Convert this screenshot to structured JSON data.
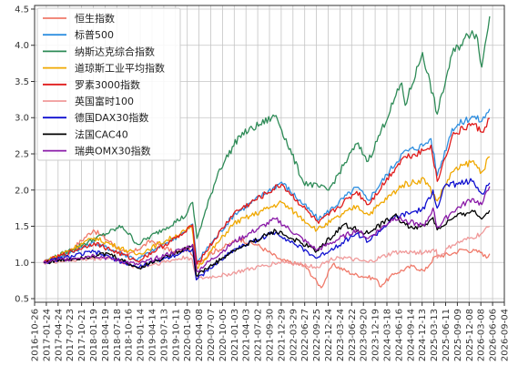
{
  "chart_data": {
    "type": "line",
    "title": "",
    "xlabel": "",
    "ylabel": "",
    "xlim": [
      "2016-10-26",
      "2026-09-04"
    ],
    "ylim": [
      0.45,
      4.55
    ],
    "grid": true,
    "legend_position": "top-left",
    "y_ticks": [
      "0.5",
      "1.0",
      "1.5",
      "2.0",
      "2.5",
      "3.0",
      "3.5",
      "4.0",
      "4.5"
    ],
    "x_ticks": [
      "2016-10-26",
      "2017-01-24",
      "2017-04-24",
      "2017-07-23",
      "2017-10-21",
      "2018-01-19",
      "2018-04-19",
      "2018-07-18",
      "2018-10-16",
      "2019-01-14",
      "2019-04-14",
      "2019-07-13",
      "2019-10-11",
      "2020-01-09",
      "2020-04-08",
      "2020-07-07",
      "2020-10-05",
      "2021-01-03",
      "2021-04-03",
      "2021-07-02",
      "2021-09-30",
      "2021-12-29",
      "2022-03-29",
      "2022-06-27",
      "2022-09-25",
      "2022-12-24",
      "2023-03-24",
      "2023-06-22",
      "2023-09-20",
      "2023-12-19",
      "2024-03-18",
      "2024-06-16",
      "2024-09-14",
      "2024-12-13",
      "2025-03-13",
      "2025-06-11",
      "2025-09-09",
      "2025-12-08",
      "2026-03-08",
      "2026-06-06",
      "2026-09-04"
    ],
    "series": [
      {
        "name": "恒生指数",
        "color": "#f07a6a",
        "x": [
          "2017-01-03",
          "2017-07-01",
          "2018-01-20",
          "2018-10-15",
          "2019-04-10",
          "2019-10-10",
          "2020-01-15",
          "2020-03-20",
          "2020-06-30",
          "2021-02-15",
          "2021-06-30",
          "2021-12-31",
          "2022-06-30",
          "2022-10-31",
          "2023-01-27",
          "2023-06-30",
          "2023-12-31",
          "2024-01-22",
          "2024-05-20",
          "2024-09-30",
          "2024-12-31",
          "2025-03-20",
          "2025-07-31",
          "2025-10-15",
          "2026-03-15",
          "2026-04-20",
          "2026-05-15"
        ],
        "values": [
          1.0,
          1.12,
          1.45,
          1.1,
          1.3,
          1.13,
          1.19,
          0.97,
          1.12,
          1.32,
          1.24,
          1.03,
          0.95,
          0.65,
          0.97,
          0.84,
          0.77,
          0.67,
          0.85,
          0.95,
          0.88,
          1.08,
          1.12,
          1.18,
          1.14,
          1.06,
          1.12
        ]
      },
      {
        "name": "标普500",
        "color": "#2f8fe0",
        "x": [
          "2017-01-03",
          "2018-01-26",
          "2018-12-24",
          "2019-12-31",
          "2020-02-19",
          "2020-03-23",
          "2020-12-31",
          "2021-12-31",
          "2022-10-12",
          "2023-07-31",
          "2023-10-27",
          "2024-07-16",
          "2024-12-31",
          "2025-02-19",
          "2025-04-08",
          "2025-07-31",
          "2025-12-31",
          "2026-03-15",
          "2026-05-15"
        ],
        "values": [
          1.0,
          1.27,
          1.04,
          1.43,
          1.53,
          1.01,
          1.66,
          2.11,
          1.59,
          2.04,
          1.86,
          2.51,
          2.63,
          2.71,
          2.2,
          2.85,
          3.02,
          2.95,
          3.12
        ]
      },
      {
        "name": "纳斯达克综合指数",
        "color": "#2e8b57",
        "x": [
          "2017-01-03",
          "2018-08-29",
          "2018-12-24",
          "2019-12-31",
          "2020-02-19",
          "2020-03-23",
          "2020-09-02",
          "2021-02-12",
          "2021-11-19",
          "2022-06-16",
          "2022-12-28",
          "2023-07-31",
          "2023-10-27",
          "2024-07-10",
          "2024-08-05",
          "2024-12-16",
          "2025-04-08",
          "2025-07-31",
          "2025-12-31",
          "2026-02-10",
          "2026-03-15",
          "2026-05-15"
        ],
        "values": [
          1.0,
          1.5,
          1.25,
          1.65,
          1.83,
          1.33,
          2.25,
          2.75,
          3.03,
          2.11,
          2.0,
          2.64,
          2.4,
          3.48,
          3.17,
          3.9,
          3.05,
          3.88,
          4.2,
          4.1,
          3.7,
          4.4
        ]
      },
      {
        "name": "道琼斯工业平均指数",
        "color": "#f0a800",
        "x": [
          "2017-01-03",
          "2018-01-26",
          "2018-12-24",
          "2019-12-31",
          "2020-02-12",
          "2020-03-23",
          "2020-12-31",
          "2021-12-31",
          "2022-09-30",
          "2023-07-31",
          "2023-10-27",
          "2024-07-16",
          "2024-12-31",
          "2025-04-08",
          "2025-07-31",
          "2025-12-31",
          "2026-03-15",
          "2026-05-15"
        ],
        "values": [
          1.0,
          1.34,
          1.11,
          1.44,
          1.5,
          0.92,
          1.54,
          1.83,
          1.45,
          1.78,
          1.66,
          2.07,
          2.15,
          1.85,
          2.25,
          2.4,
          2.25,
          2.46
        ]
      },
      {
        "name": "罗素3000指数",
        "color": "#e01a1a",
        "x": [
          "2017-01-03",
          "2018-01-26",
          "2018-12-24",
          "2019-12-31",
          "2020-02-19",
          "2020-03-23",
          "2020-12-31",
          "2021-12-31",
          "2022-10-12",
          "2023-07-31",
          "2023-10-27",
          "2024-07-16",
          "2024-12-31",
          "2025-02-19",
          "2025-04-08",
          "2025-07-31",
          "2025-12-31",
          "2026-03-15",
          "2026-05-15"
        ],
        "values": [
          1.0,
          1.27,
          1.02,
          1.42,
          1.52,
          0.98,
          1.68,
          2.08,
          1.54,
          1.98,
          1.8,
          2.44,
          2.55,
          2.62,
          2.12,
          2.75,
          2.92,
          2.8,
          2.99
        ]
      },
      {
        "name": "英国富时100",
        "color": "#f09a9a",
        "x": [
          "2017-01-03",
          "2018-05-22",
          "2018-12-24",
          "2019-12-31",
          "2020-02-14",
          "2020-03-23",
          "2020-10-30",
          "2021-12-31",
          "2022-09-30",
          "2023-03-01",
          "2023-10-27",
          "2024-05-15",
          "2024-12-31",
          "2025-03-31",
          "2025-04-08",
          "2025-07-31",
          "2025-12-31",
          "2026-03-15",
          "2026-05-15"
        ],
        "values": [
          1.0,
          1.07,
          0.93,
          1.07,
          1.05,
          0.77,
          0.83,
          1.01,
          0.94,
          1.08,
          1.0,
          1.14,
          1.14,
          1.18,
          1.06,
          1.24,
          1.34,
          1.4,
          1.5
        ]
      },
      {
        "name": "德国DAX30指数",
        "color": "#1010d0",
        "x": [
          "2017-01-03",
          "2018-01-23",
          "2018-12-27",
          "2019-12-31",
          "2020-02-19",
          "2020-03-18",
          "2020-12-31",
          "2021-11-17",
          "2022-09-29",
          "2023-07-31",
          "2023-10-27",
          "2024-05-15",
          "2024-12-31",
          "2025-03-06",
          "2025-04-07",
          "2025-06-05",
          "2025-12-31",
          "2026-03-15",
          "2026-05-15"
        ],
        "values": [
          1.0,
          1.15,
          0.93,
          1.16,
          1.19,
          0.76,
          1.18,
          1.42,
          1.06,
          1.4,
          1.29,
          1.62,
          1.74,
          2.0,
          1.75,
          2.06,
          2.12,
          1.95,
          2.1
        ]
      },
      {
        "name": "法国CAC40",
        "color": "#000000",
        "x": [
          "2017-01-03",
          "2018-05-18",
          "2018-12-27",
          "2019-12-31",
          "2020-02-19",
          "2020-03-18",
          "2020-12-31",
          "2021-11-17",
          "2022-09-29",
          "2023-04-20",
          "2023-10-27",
          "2024-05-15",
          "2024-09-10",
          "2024-12-31",
          "2025-03-06",
          "2025-04-07",
          "2025-07-31",
          "2025-12-31",
          "2026-03-15",
          "2026-05-15"
        ],
        "values": [
          1.0,
          1.12,
          0.92,
          1.2,
          1.24,
          0.82,
          1.16,
          1.44,
          1.16,
          1.52,
          1.4,
          1.65,
          1.48,
          1.5,
          1.62,
          1.45,
          1.6,
          1.72,
          1.6,
          1.72
        ]
      },
      {
        "name": "瑞典OMX30指数",
        "color": "#8a1aa8",
        "x": [
          "2017-01-03",
          "2018-01-23",
          "2018-12-27",
          "2019-12-31",
          "2020-02-19",
          "2020-03-23",
          "2020-12-31",
          "2021-11-17",
          "2022-09-29",
          "2023-07-31",
          "2023-10-27",
          "2024-05-15",
          "2024-12-31",
          "2025-03-06",
          "2025-04-07",
          "2025-07-31",
          "2025-12-31",
          "2026-03-15",
          "2026-05-15"
        ],
        "values": [
          1.0,
          1.1,
          0.97,
          1.2,
          1.25,
          0.88,
          1.28,
          1.6,
          1.17,
          1.45,
          1.33,
          1.62,
          1.5,
          1.75,
          1.48,
          1.7,
          1.88,
          1.8,
          2.05
        ]
      }
    ]
  }
}
